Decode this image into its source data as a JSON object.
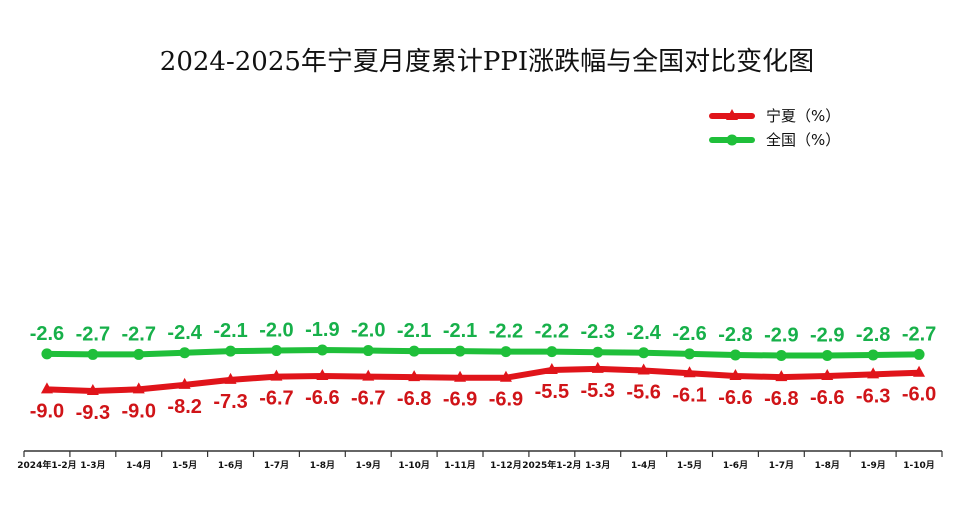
{
  "chart_data": {
    "type": "line",
    "title": "2024-2025年宁夏月度累计PPI涨跌幅与全国对比变化图",
    "xlabel": "",
    "ylabel": "",
    "categories": [
      "2024年1-2月",
      "1-3月",
      "1-4月",
      "1-5月",
      "1-6月",
      "1-7月",
      "1-8月",
      "1-9月",
      "1-10月",
      "1-11月",
      "1-12月",
      "2025年1-2月",
      "1-3月",
      "1-4月",
      "1-5月",
      "1-6月",
      "1-7月",
      "1-8月",
      "1-9月",
      "1-10月"
    ],
    "series": [
      {
        "name": "宁夏（%）",
        "color": "#e0141a",
        "marker": "triangle",
        "values": [
          -9.0,
          -9.3,
          -9.0,
          -8.2,
          -7.3,
          -6.7,
          -6.6,
          -6.7,
          -6.8,
          -6.9,
          -6.9,
          -5.5,
          -5.3,
          -5.6,
          -6.1,
          -6.6,
          -6.8,
          -6.6,
          -6.3,
          -6.0
        ],
        "labels": [
          "-9.0",
          "-9.3",
          "-9.0",
          "-8.2",
          "-7.3",
          "-6.7",
          "-6.6",
          "-6.7",
          "-6.8",
          "-6.9",
          "-6.9",
          "-5.5",
          "-5.3",
          "-5.6",
          "-6.1",
          "-6.6",
          "-6.8",
          "-6.6",
          "-6.3",
          "-6.0"
        ]
      },
      {
        "name": "全国（%）",
        "color": "#1fbf3a",
        "marker": "circle",
        "values": [
          -2.6,
          -2.7,
          -2.7,
          -2.4,
          -2.1,
          -2.0,
          -1.9,
          -2.0,
          -2.1,
          -2.1,
          -2.2,
          -2.2,
          -2.3,
          -2.4,
          -2.6,
          -2.8,
          -2.9,
          -2.9,
          -2.8,
          -2.7
        ],
        "labels": [
          "-2.6",
          "-2.7",
          "-2.7",
          "-2.4",
          "-2.1",
          "-2.0",
          "-1.9",
          "-2.0",
          "-2.1",
          "-2.1",
          "-2.2",
          "-2.2",
          "-2.3",
          "-2.4",
          "-2.6",
          "-2.8",
          "-2.9",
          "-2.9",
          "-2.8",
          "-2.7"
        ]
      }
    ],
    "grid": false,
    "legend": "top-right",
    "label_colors": {
      "宁夏": "#d01418",
      "全国": "#17b04a"
    }
  }
}
